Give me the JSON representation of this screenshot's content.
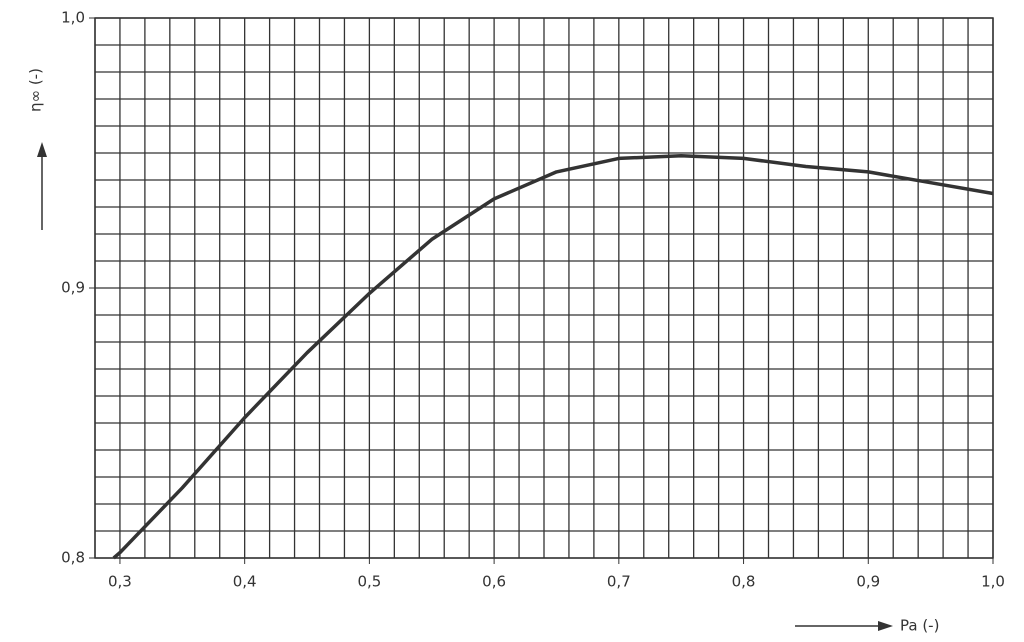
{
  "chart_data": {
    "type": "line",
    "x_label": "Pa (-)",
    "y_label": "η∞ (-)",
    "x": [
      0.295,
      0.3,
      0.35,
      0.4,
      0.45,
      0.5,
      0.55,
      0.6,
      0.65,
      0.7,
      0.75,
      0.8,
      0.85,
      0.9,
      0.95,
      1.0
    ],
    "values": [
      0.8,
      0.802,
      0.826,
      0.852,
      0.876,
      0.898,
      0.918,
      0.933,
      0.943,
      0.948,
      0.949,
      0.948,
      0.945,
      0.943,
      0.939,
      0.935
    ],
    "color": "#333333",
    "xlim": [
      0.28,
      1.0
    ],
    "ylim": [
      0.8,
      1.0
    ],
    "xticks": [
      {
        "value": 0.3,
        "label": "0,3"
      },
      {
        "value": 0.4,
        "label": "0,4"
      },
      {
        "value": 0.5,
        "label": "0,5"
      },
      {
        "value": 0.6,
        "label": "0,6"
      },
      {
        "value": 0.7,
        "label": "0,7"
      },
      {
        "value": 0.8,
        "label": "0,8"
      },
      {
        "value": 0.9,
        "label": "0,9"
      },
      {
        "value": 1.0,
        "label": "1,0"
      }
    ],
    "yticks": [
      {
        "value": 0.8,
        "label": "0,8"
      },
      {
        "value": 0.9,
        "label": "0,9"
      },
      {
        "value": 1.0,
        "label": "1,0"
      }
    ],
    "grid": true,
    "x_minor_step": 0.02,
    "y_minor_step": 0.01
  }
}
